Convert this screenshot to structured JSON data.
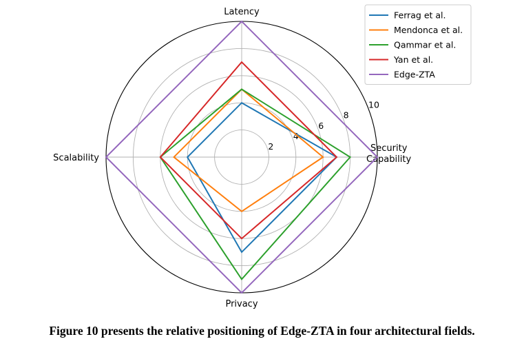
{
  "caption": "Figure 10 presents the relative positioning of Edge-ZTA in four architectural fields.",
  "chart_data": {
    "type": "radar",
    "axes": [
      "Security\nCapability",
      "Latency",
      "Scalability",
      "Privacy"
    ],
    "r_ticks": [
      2,
      4,
      6,
      8,
      10
    ],
    "r_max": 10,
    "grid": true,
    "legend_position": "top-right",
    "series": [
      {
        "name": "Ferrag et al.",
        "color": "#1f77b4",
        "values": [
          7,
          4,
          4,
          7
        ]
      },
      {
        "name": "Mendonca et al.",
        "color": "#ff7f0e",
        "values": [
          6,
          5,
          5,
          4
        ]
      },
      {
        "name": "Qammar et al.",
        "color": "#2ca02c",
        "values": [
          8,
          5,
          6,
          9
        ]
      },
      {
        "name": "Yan et al.",
        "color": "#d62728",
        "values": [
          7,
          7,
          6,
          6
        ]
      },
      {
        "name": "Edge-ZTA",
        "color": "#9467bd",
        "values": [
          10,
          10,
          10,
          10
        ]
      }
    ]
  }
}
